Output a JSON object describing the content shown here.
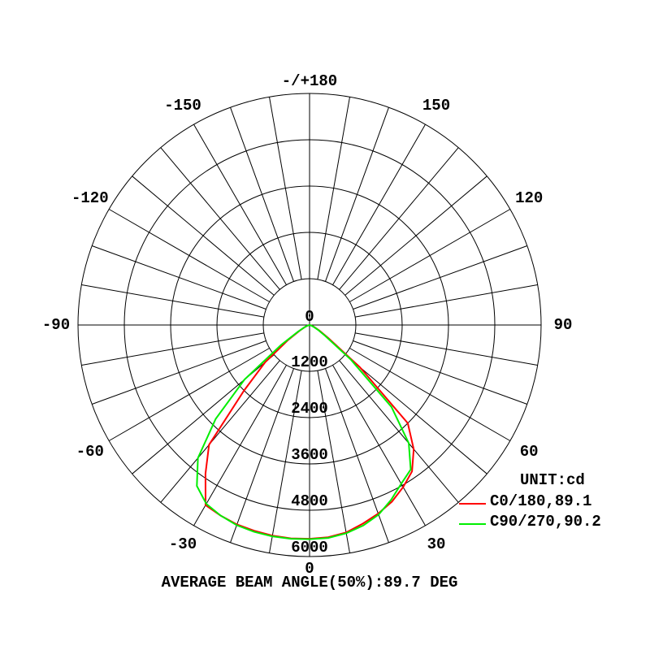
{
  "chart_data": {
    "type": "polar",
    "annotation": "AVERAGE BEAM ANGLE(50%):89.7 DEG",
    "legend_title": "UNIT:cd",
    "legend": "lower right",
    "rlim": [
      0,
      6000
    ],
    "rticks": [
      0,
      1200,
      2400,
      3600,
      4800,
      6000
    ],
    "angle_ticks": [
      {
        "value": 180,
        "label": "-/+180"
      },
      150,
      120,
      90,
      60,
      30,
      0,
      -30,
      -60,
      -90,
      -120,
      -150
    ],
    "x": [
      -90,
      -85,
      -80,
      -75,
      -70,
      -65,
      -60,
      -55,
      -50,
      -45,
      -40,
      -35,
      -30,
      -25,
      -20,
      -15,
      -10,
      -5,
      0,
      5,
      10,
      15,
      20,
      25,
      30,
      35,
      40,
      45,
      50,
      55,
      60,
      65,
      70,
      75,
      80,
      85,
      90
    ],
    "series": [
      {
        "name": "C0/180,89.1",
        "color": "#ff0000",
        "values": [
          0,
          10,
          20,
          40,
          80,
          150,
          300,
          700,
          1500,
          2400,
          4050,
          4700,
          5390,
          5450,
          5500,
          5520,
          5540,
          5550,
          5540,
          5520,
          5460,
          5330,
          5200,
          5050,
          4850,
          4630,
          4200,
          3600,
          1700,
          600,
          300,
          150,
          80,
          40,
          20,
          10,
          0
        ]
      },
      {
        "name": "C90/270,90.2",
        "color": "#00ee00",
        "values": [
          0,
          10,
          20,
          40,
          80,
          160,
          350,
          900,
          2200,
          3440,
          4500,
          5090,
          5350,
          5450,
          5520,
          5550,
          5560,
          5560,
          5550,
          5540,
          5480,
          5380,
          5230,
          5000,
          4750,
          4570,
          4000,
          3000,
          1400,
          500,
          250,
          120,
          60,
          30,
          15,
          5,
          0
        ]
      }
    ]
  }
}
